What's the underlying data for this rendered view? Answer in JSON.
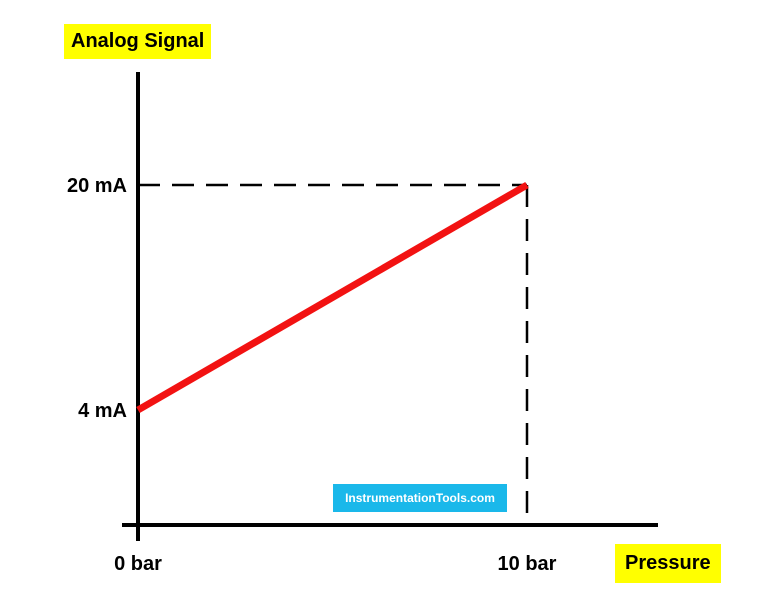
{
  "chart_data": {
    "type": "line",
    "x": [
      0,
      10
    ],
    "series": [
      {
        "values": [
          4,
          20
        ],
        "color": "#f21212"
      }
    ],
    "xlabel": "Pressure",
    "ylabel": "Analog Signal",
    "x_ticks": [
      {
        "value": 0,
        "label": "0 bar"
      },
      {
        "value": 10,
        "label": "10 bar"
      }
    ],
    "y_ticks": [
      {
        "value": 4,
        "label": "4 mA"
      },
      {
        "value": 20,
        "label": "20 mA"
      }
    ],
    "reference_lines": [
      {
        "axis": "y",
        "value": 20,
        "style": "dashed"
      },
      {
        "axis": "x",
        "value": 10,
        "style": "dashed"
      }
    ],
    "grid": false,
    "annotations": [
      {
        "text": "InstrumentationTools.com",
        "color": "#1ab8ea"
      }
    ]
  },
  "colors": {
    "title_highlight": "#ffff00",
    "axis": "#000000",
    "watermark_bg": "#1ab8ea"
  }
}
